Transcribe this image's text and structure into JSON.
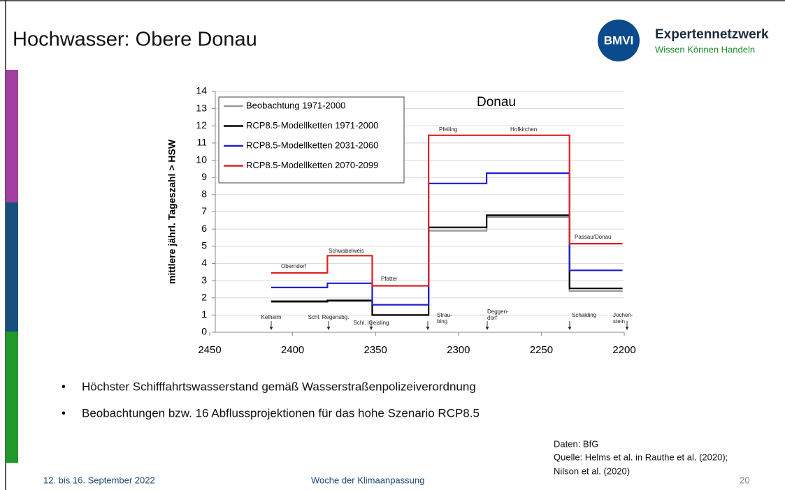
{
  "slide": {
    "title": "Hochwasser: Obere Donau",
    "logo": {
      "mark": "BMVI",
      "name": "Expertennetzwerk",
      "tagline": "Wissen Können Handeln"
    },
    "bullets": [
      "Höchster Schifffahrtswasserstand gemäß Wasserstraßenpolizeiverordnung",
      "Beobachtungen bzw. 16 Abflussprojektionen für das hohe Szenario RCP8.5"
    ],
    "source": [
      "Daten: BfG",
      "Quelle: Helms et al. in Rauthe et al. (2020);",
      "Nilson et al. (2020)"
    ],
    "footer": {
      "date": "12. bis 16. September 2022",
      "event": "Woche der Klimaanpassung",
      "page": "20"
    }
  },
  "chart_data": {
    "type": "line",
    "title": "Donau",
    "y_label": "mittlere jährl. Tageszahl > HSW",
    "xlim": [
      2450,
      2200
    ],
    "xticks": [
      2450,
      2400,
      2350,
      2300,
      2250,
      2200
    ],
    "ylim": [
      0,
      14
    ],
    "yticks": [
      0,
      1,
      2,
      3,
      4,
      5,
      6,
      7,
      8,
      9,
      10,
      11,
      12,
      13,
      14
    ],
    "grid": true,
    "series": [
      {
        "name": "Beobachtung 1971-2000",
        "color": "#999999",
        "x": [
          2413,
          2379,
          2379,
          2352,
          2352,
          2318,
          2318,
          2283,
          2283,
          2233,
          2233,
          2201
        ],
        "values": [
          1.75,
          1.75,
          1.8,
          1.8,
          1.0,
          1.0,
          5.9,
          5.9,
          6.7,
          6.7,
          2.4,
          2.4
        ]
      },
      {
        "name": "RCP8.5-Modellketten 1971-2000",
        "color": "#000000",
        "x": [
          2413,
          2379,
          2379,
          2352,
          2352,
          2318,
          2318,
          2283,
          2283,
          2233,
          2233,
          2201
        ],
        "values": [
          1.8,
          1.8,
          1.85,
          1.85,
          1.0,
          1.0,
          6.1,
          6.1,
          6.8,
          6.8,
          2.55,
          2.55
        ]
      },
      {
        "name": "RCP8.5-Modellketten 2031-2060",
        "color": "#1f1fcf",
        "x": [
          2413,
          2379,
          2379,
          2352,
          2352,
          2318,
          2318,
          2283,
          2283,
          2233,
          2233,
          2201
        ],
        "values": [
          2.6,
          2.6,
          2.85,
          2.85,
          1.6,
          1.6,
          8.65,
          8.65,
          9.25,
          9.25,
          3.6,
          3.6
        ]
      },
      {
        "name": "RCP8.5-Modellketten 2070-2099",
        "color": "#e02020",
        "x": [
          2413,
          2379,
          2379,
          2352,
          2352,
          2318,
          2318,
          2233,
          2233,
          2201
        ],
        "values": [
          3.45,
          3.45,
          4.45,
          4.45,
          2.7,
          2.7,
          11.45,
          11.45,
          5.15,
          5.15
        ]
      }
    ],
    "annotations": [
      [
        "Kelheim"
      ],
      [
        "Schl. Regensbg."
      ],
      [
        "Schl. |Geisling"
      ],
      [
        "Strau-",
        "bing"
      ],
      [
        "Deggen-",
        "dorf"
      ],
      [
        "Schalding"
      ],
      [
        "Jochen-",
        "stein"
      ],
      [
        "Oberndorf"
      ],
      [
        "Schwabelweis"
      ],
      [
        "Pfatter"
      ],
      [
        "Pfelling"
      ],
      [
        "Hofkirchen"
      ],
      [
        "Passau/Donau"
      ]
    ]
  }
}
